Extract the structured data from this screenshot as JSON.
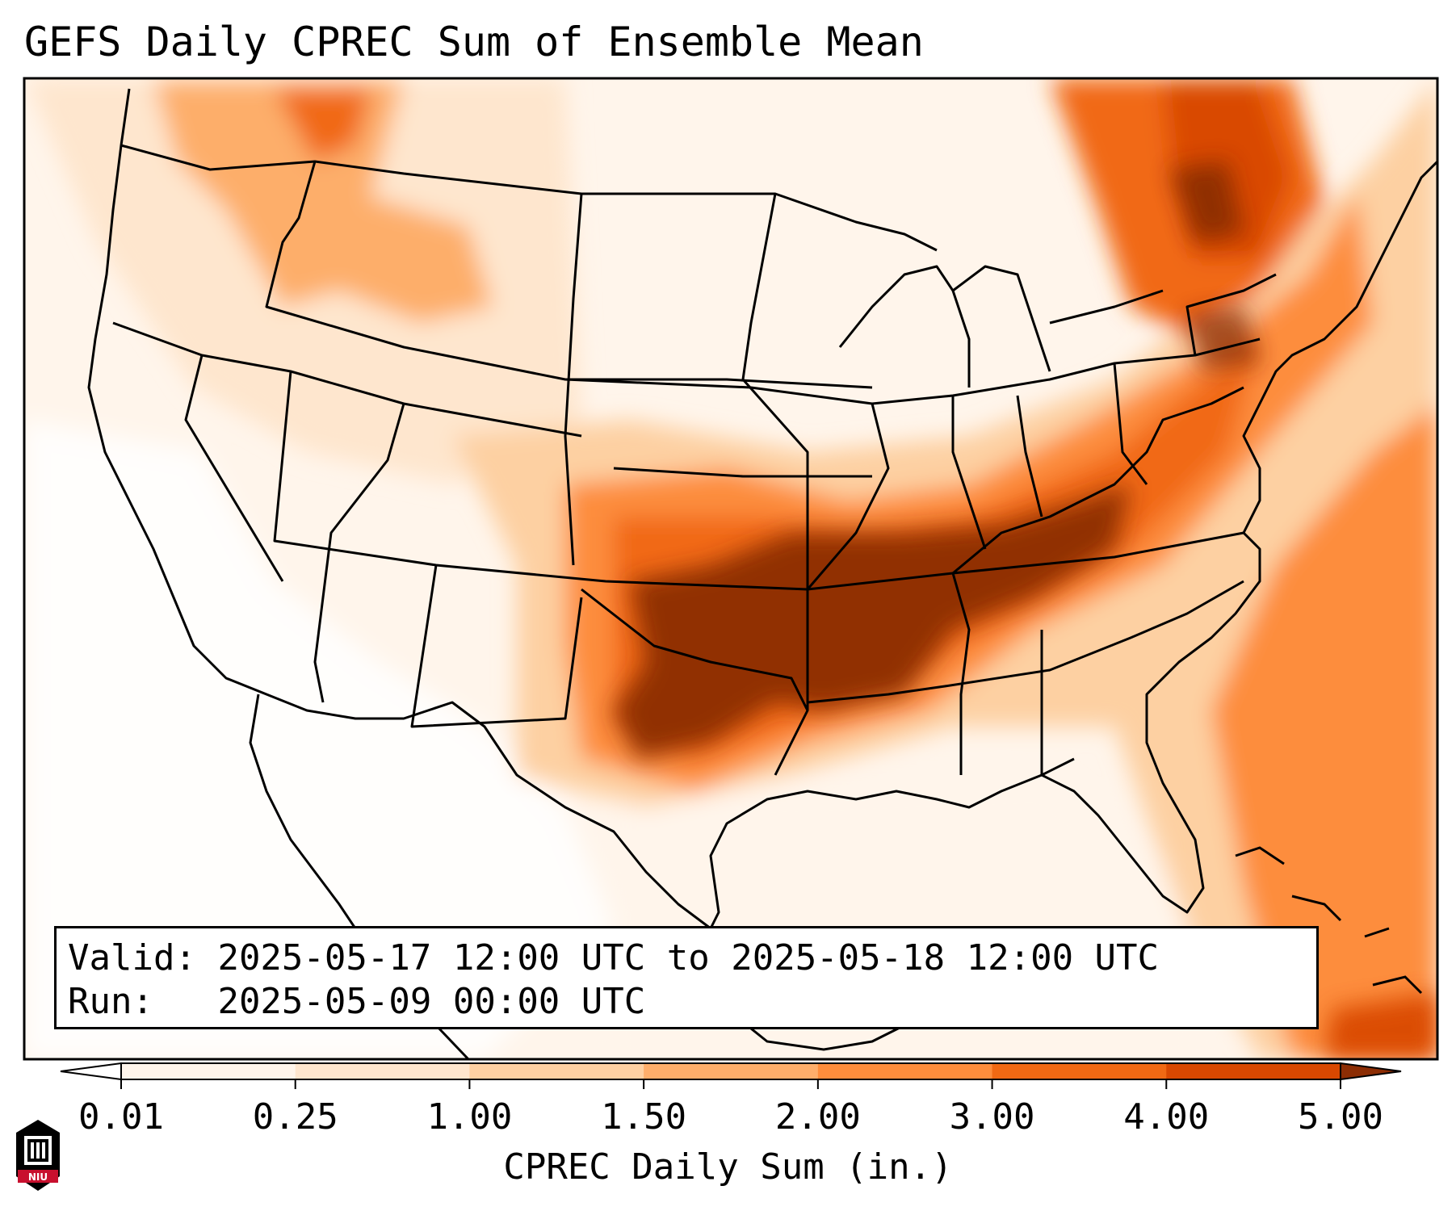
{
  "title": "GEFS Daily CPREC Sum of Ensemble Mean",
  "valid_label": "Valid:",
  "valid_value": "2025-05-17 12:00 UTC to 2025-05-18 12:00 UTC",
  "run_label": "Run:",
  "run_value": "2025-05-09 00:00 UTC",
  "colorbar": {
    "label": "CPREC Daily Sum (in.)",
    "ticks": [
      "0.01",
      "0.25",
      "1.00",
      "1.50",
      "2.00",
      "3.00",
      "4.00",
      "5.00"
    ],
    "colors": [
      "#fff5eb",
      "#fee6ce",
      "#fdd0a2",
      "#fdae6b",
      "#fd8d3c",
      "#f16913",
      "#d94801",
      "#8c2d04"
    ]
  },
  "logo_text": "NIU"
}
